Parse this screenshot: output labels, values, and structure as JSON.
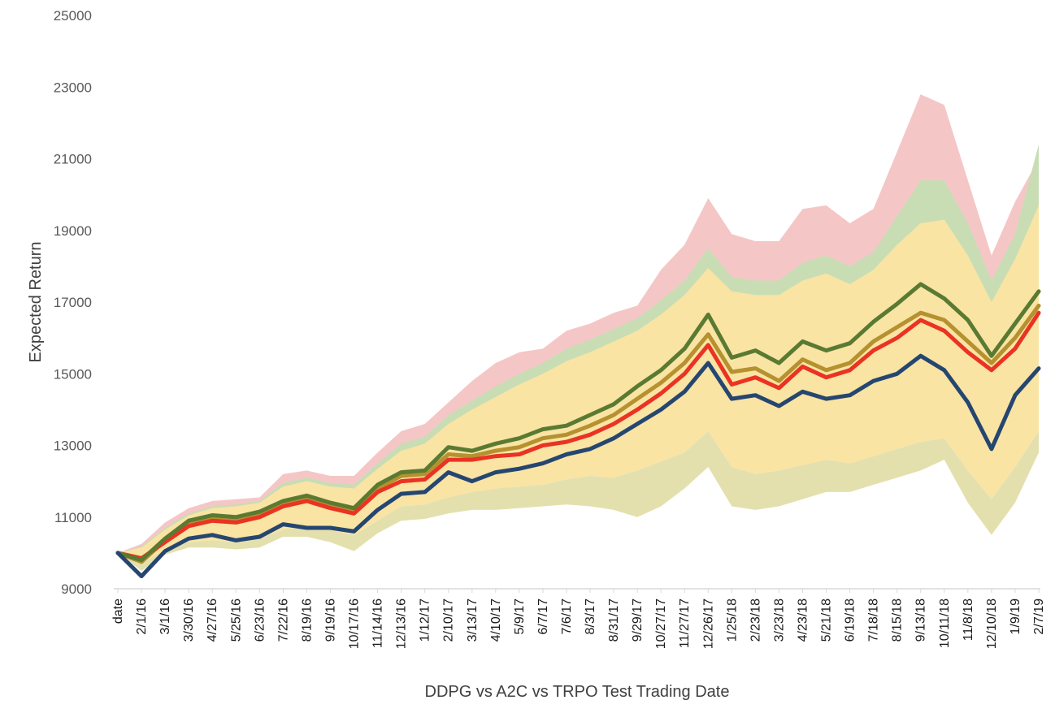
{
  "chart_data": {
    "type": "line",
    "title": "",
    "xlabel": "DDPG vs A2C vs TRPO Test Trading Date",
    "ylabel": "Expected Return",
    "ylim": [
      9000,
      25000
    ],
    "yticks": [
      9000,
      11000,
      13000,
      15000,
      17000,
      19000,
      21000,
      23000,
      25000
    ],
    "grid": false,
    "legend": "none",
    "categories": [
      "date",
      "2/1/16",
      "3/1/16",
      "3/30/16",
      "4/27/16",
      "5/25/16",
      "6/23/16",
      "7/22/16",
      "8/19/16",
      "9/19/16",
      "10/17/16",
      "11/14/16",
      "12/13/16",
      "1/12/17",
      "2/10/17",
      "3/13/17",
      "4/10/17",
      "5/9/17",
      "6/7/17",
      "7/6/17",
      "8/3/17",
      "8/31/17",
      "9/29/17",
      "10/27/17",
      "11/27/17",
      "12/26/17",
      "1/25/18",
      "2/23/18",
      "3/23/18",
      "4/23/18",
      "5/21/18",
      "6/19/18",
      "7/18/18",
      "8/15/18",
      "9/13/18",
      "10/11/18",
      "11/8/18",
      "12/10/18",
      "1/9/19",
      "2/7/19"
    ],
    "bands": [
      {
        "color": "#f4c7c6",
        "upper": [
          10000,
          10250,
          10850,
          11250,
          11450,
          11500,
          11550,
          12200,
          12300,
          12150,
          12150,
          12800,
          13400,
          13600,
          14200,
          14800,
          15300,
          15600,
          15700,
          16200,
          16400,
          16700,
          16900,
          17900,
          18600,
          19900,
          18900,
          18700,
          18700,
          19600,
          19700,
          19200,
          19600,
          21200,
          22800,
          22500,
          20400,
          18300,
          19800,
          21000
        ],
        "lower": [
          10000,
          9850,
          10300,
          10650,
          10900,
          10950,
          11050,
          11500,
          11700,
          11650,
          11600,
          12100,
          12600,
          12800,
          13300,
          13700,
          14100,
          14500,
          14800,
          15100,
          15400,
          15700,
          16000,
          16500,
          17000,
          17800,
          16900,
          16900,
          16700,
          17000,
          17200,
          16900,
          17300,
          18000,
          18700,
          19000,
          18300,
          17200,
          18000,
          18900
        ]
      },
      {
        "color": "#c9ddb5",
        "upper": [
          10000,
          10180,
          10700,
          11100,
          11300,
          11350,
          11450,
          11950,
          12100,
          11950,
          11900,
          12500,
          13050,
          13250,
          13850,
          14250,
          14650,
          15000,
          15300,
          15700,
          15950,
          16250,
          16550,
          17050,
          17600,
          18500,
          17700,
          17600,
          17600,
          18100,
          18300,
          18000,
          18400,
          19400,
          20400,
          20400,
          19200,
          17600,
          18900,
          21400
        ],
        "lower": [
          10000,
          9800,
          10250,
          10550,
          10800,
          10850,
          10950,
          11300,
          11500,
          11450,
          11400,
          11850,
          12300,
          12500,
          12950,
          13300,
          13700,
          14050,
          14350,
          14700,
          14950,
          15250,
          15550,
          15950,
          16450,
          17200,
          16300,
          16300,
          16100,
          16400,
          16600,
          16400,
          16800,
          17400,
          18000,
          18300,
          17600,
          16600,
          17200,
          18200
        ]
      },
      {
        "color": "#f9e4a4",
        "upper": [
          10000,
          10150,
          10650,
          11050,
          11250,
          11300,
          11400,
          11850,
          12000,
          11850,
          11800,
          12350,
          12850,
          13050,
          13600,
          14000,
          14350,
          14700,
          15000,
          15350,
          15600,
          15900,
          16200,
          16650,
          17200,
          17950,
          17300,
          17200,
          17200,
          17600,
          17800,
          17500,
          17900,
          18600,
          19200,
          19300,
          18300,
          17000,
          18200,
          19700
        ],
        "lower": [
          10000,
          9700,
          10100,
          10300,
          10350,
          10300,
          10400,
          10650,
          10750,
          10650,
          10500,
          10900,
          11300,
          11350,
          11550,
          11700,
          11800,
          11850,
          11900,
          12050,
          12150,
          12100,
          12300,
          12550,
          12800,
          13400,
          12400,
          12200,
          12300,
          12450,
          12600,
          12500,
          12700,
          12900,
          13100,
          13200,
          12300,
          11500,
          12400,
          13400
        ]
      },
      {
        "color": "#e4e0ae",
        "upper": [
          10000,
          9700,
          10100,
          10300,
          10350,
          10300,
          10400,
          10650,
          10750,
          10650,
          10500,
          10900,
          11300,
          11350,
          11550,
          11700,
          11800,
          11850,
          11900,
          12050,
          12150,
          12100,
          12300,
          12550,
          12800,
          13400,
          12400,
          12200,
          12300,
          12450,
          12600,
          12500,
          12700,
          12900,
          13100,
          13200,
          12300,
          11500,
          12400,
          13400
        ],
        "lower": [
          10000,
          9500,
          9950,
          10150,
          10150,
          10100,
          10150,
          10450,
          10450,
          10300,
          10050,
          10550,
          10900,
          10950,
          11100,
          11200,
          11200,
          11250,
          11300,
          11350,
          11300,
          11200,
          11000,
          11300,
          11800,
          12400,
          11300,
          11200,
          11300,
          11500,
          11700,
          11700,
          11900,
          12100,
          12300,
          12600,
          11400,
          10500,
          11400,
          12800
        ]
      }
    ],
    "series": [
      {
        "color": "#b5912f",
        "values": [
          10000,
          9750,
          10350,
          10800,
          10950,
          10900,
          11050,
          11350,
          11500,
          11300,
          11150,
          11800,
          12150,
          12200,
          12750,
          12700,
          12850,
          12950,
          13200,
          13300,
          13550,
          13850,
          14300,
          14750,
          15300,
          16100,
          15050,
          15150,
          14800,
          15400,
          15100,
          15300,
          15900,
          16300,
          16700,
          16500,
          15900,
          15300,
          16000,
          16900
        ]
      },
      {
        "color": "#ea3323",
        "values": [
          10000,
          9850,
          10300,
          10750,
          10900,
          10850,
          11000,
          11300,
          11450,
          11250,
          11100,
          11700,
          12000,
          12050,
          12600,
          12600,
          12700,
          12750,
          13000,
          13100,
          13300,
          13600,
          14000,
          14450,
          15000,
          15800,
          14700,
          14900,
          14600,
          15200,
          14900,
          15100,
          15650,
          16000,
          16500,
          16200,
          15600,
          15100,
          15700,
          16700
        ]
      },
      {
        "color": "#5a7a32",
        "values": [
          10000,
          9800,
          10400,
          10900,
          11050,
          11000,
          11150,
          11450,
          11600,
          11400,
          11250,
          11900,
          12250,
          12300,
          12950,
          12850,
          13050,
          13200,
          13450,
          13550,
          13850,
          14150,
          14650,
          15100,
          15700,
          16650,
          15450,
          15650,
          15300,
          15900,
          15650,
          15850,
          16450,
          16950,
          17500,
          17100,
          16500,
          15500,
          16400,
          17300
        ]
      },
      {
        "color": "#254670",
        "values": [
          10000,
          9350,
          10050,
          10400,
          10500,
          10350,
          10450,
          10800,
          10700,
          10700,
          10600,
          11200,
          11650,
          11700,
          12250,
          12000,
          12250,
          12350,
          12500,
          12750,
          12900,
          13200,
          13600,
          14000,
          14500,
          15300,
          14300,
          14400,
          14100,
          14500,
          14300,
          14400,
          14800,
          15000,
          15500,
          15100,
          14200,
          12900,
          14400,
          15150
        ]
      }
    ]
  }
}
